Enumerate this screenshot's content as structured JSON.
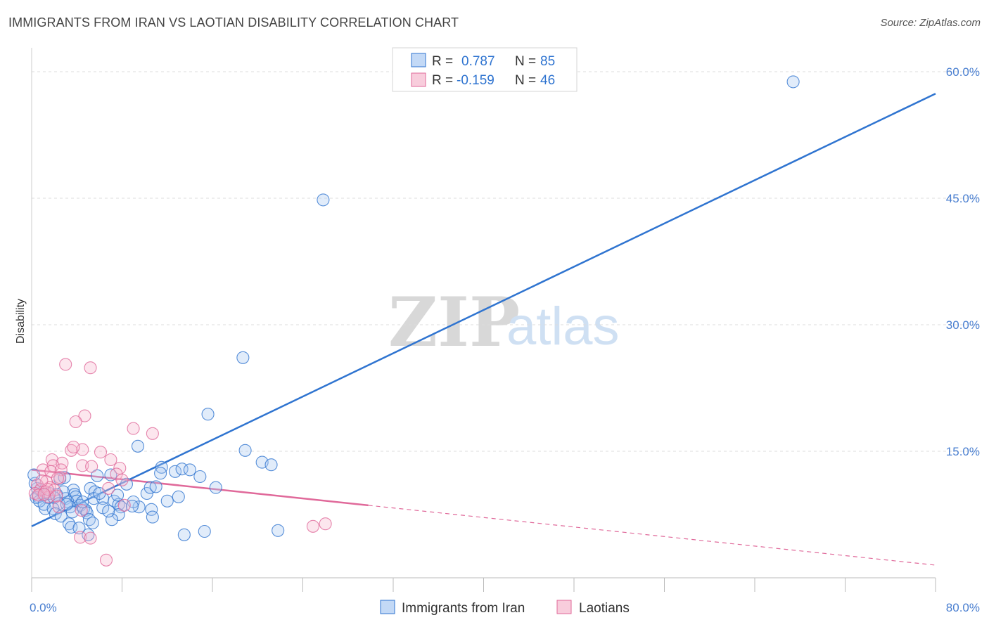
{
  "header": {
    "title": "IMMIGRANTS FROM IRAN VS LAOTIAN DISABILITY CORRELATION CHART",
    "source": "Source: ZipAtlas.com"
  },
  "watermark": {
    "zip": "ZIP",
    "atlas": "atlas"
  },
  "colors": {
    "blue": "#2f74d0",
    "blue_fill": "#a9c9f2",
    "pink": "#e0699a",
    "pink_fill": "#f5b8cd",
    "grid": "#dddddd",
    "axis_label": "#4a7fd0"
  },
  "chart_data": {
    "type": "scatter",
    "title": "IMMIGRANTS FROM IRAN VS LAOTIAN DISABILITY CORRELATION CHART",
    "xlabel": "",
    "ylabel": "Disability",
    "xlim": [
      0,
      80
    ],
    "ylim": [
      0,
      62
    ],
    "x_tick_labels": [
      {
        "value": 0,
        "label": "0.0%"
      },
      {
        "value": 80,
        "label": "80.0%"
      }
    ],
    "y_ticks": [
      {
        "value": 15,
        "label": "15.0%"
      },
      {
        "value": 30,
        "label": "30.0%"
      },
      {
        "value": 45,
        "label": "45.0%"
      },
      {
        "value": 60,
        "label": "60.0%"
      }
    ],
    "grid": true,
    "legend_placement": "top-center",
    "stats": [
      {
        "r_label": "R =",
        "r_value": "0.787",
        "n_label": "N =",
        "n_value": "85"
      },
      {
        "r_label": "R =",
        "r_value": "-0.159",
        "n_label": "N =",
        "n_value": "46"
      }
    ],
    "series": [
      {
        "name": "Immigrants from Iran",
        "color": "#2f74d0",
        "trend": {
          "x0": 0,
          "y0": 6.1,
          "x1": 80,
          "y1": 57.4,
          "dashed_from": null
        },
        "points": [
          [
            67.4,
            58.8
          ],
          [
            25.8,
            44.8
          ],
          [
            18.7,
            26.1
          ],
          [
            15.6,
            19.4
          ],
          [
            18.9,
            15.1
          ],
          [
            20.4,
            13.7
          ],
          [
            21.2,
            13.4
          ],
          [
            9.4,
            15.6
          ],
          [
            11.5,
            13.1
          ],
          [
            11.4,
            12.4
          ],
          [
            12.7,
            12.6
          ],
          [
            13.3,
            12.9
          ],
          [
            14.0,
            12.8
          ],
          [
            14.9,
            12.0
          ],
          [
            16.3,
            10.7
          ],
          [
            7.0,
            12.2
          ],
          [
            8.4,
            11.1
          ],
          [
            10.2,
            10.0
          ],
          [
            10.5,
            10.7
          ],
          [
            11.0,
            10.8
          ],
          [
            12.0,
            9.1
          ],
          [
            5.2,
            10.6
          ],
          [
            5.6,
            10.2
          ],
          [
            5.5,
            9.4
          ],
          [
            6.3,
            9.4
          ],
          [
            7.3,
            9.1
          ],
          [
            7.7,
            8.7
          ],
          [
            7.9,
            8.4
          ],
          [
            9.5,
            8.4
          ],
          [
            10.6,
            8.1
          ],
          [
            6.3,
            8.3
          ],
          [
            7.7,
            7.5
          ],
          [
            7.1,
            6.9
          ],
          [
            10.7,
            7.2
          ],
          [
            4.8,
            8.0
          ],
          [
            3.7,
            10.4
          ],
          [
            3.8,
            9.9
          ],
          [
            3.9,
            9.6
          ],
          [
            4.0,
            9.1
          ],
          [
            4.3,
            8.6
          ],
          [
            4.6,
            8.2
          ],
          [
            4.9,
            7.7
          ],
          [
            3.0,
            9.4
          ],
          [
            3.2,
            9.0
          ],
          [
            3.4,
            8.4
          ],
          [
            3.6,
            7.8
          ],
          [
            2.5,
            11.7
          ],
          [
            2.8,
            10.2
          ],
          [
            2.2,
            9.9
          ],
          [
            2.0,
            9.5
          ],
          [
            2.4,
            8.8
          ],
          [
            1.6,
            10.0
          ],
          [
            1.4,
            9.5
          ],
          [
            1.2,
            8.2
          ],
          [
            1.0,
            9.8
          ],
          [
            0.8,
            10.4
          ],
          [
            0.6,
            9.6
          ],
          [
            0.5,
            10.6
          ],
          [
            0.3,
            11.2
          ],
          [
            0.2,
            12.2
          ],
          [
            0.4,
            9.5
          ],
          [
            0.7,
            9.1
          ],
          [
            1.1,
            8.7
          ],
          [
            1.9,
            8.2
          ],
          [
            2.1,
            7.6
          ],
          [
            2.6,
            7.3
          ],
          [
            3.3,
            6.4
          ],
          [
            3.5,
            6.0
          ],
          [
            4.2,
            5.9
          ],
          [
            5.0,
            5.1
          ],
          [
            5.1,
            6.9
          ],
          [
            5.4,
            6.5
          ],
          [
            13.5,
            5.1
          ],
          [
            15.3,
            5.5
          ],
          [
            21.8,
            5.6
          ],
          [
            13.0,
            9.6
          ],
          [
            5.8,
            12.1
          ],
          [
            7.6,
            9.8
          ],
          [
            9.0,
            9.0
          ],
          [
            6.8,
            7.9
          ],
          [
            8.9,
            8.5
          ],
          [
            4.5,
            9.0
          ],
          [
            3.1,
            8.7
          ],
          [
            2.9,
            11.9
          ],
          [
            6.0,
            10.0
          ]
        ]
      },
      {
        "name": "Laotians",
        "color": "#e0699a",
        "trend": {
          "x0": 0,
          "y0": 12.8,
          "x1": 80,
          "y1": 1.5,
          "dashed_from": 29.8
        },
        "points": [
          [
            3.0,
            25.3
          ],
          [
            5.2,
            24.9
          ],
          [
            4.7,
            19.2
          ],
          [
            3.9,
            18.5
          ],
          [
            9.0,
            17.7
          ],
          [
            10.7,
            17.1
          ],
          [
            4.5,
            15.2
          ],
          [
            3.5,
            15.1
          ],
          [
            3.7,
            15.5
          ],
          [
            6.1,
            14.9
          ],
          [
            7.0,
            14.0
          ],
          [
            1.8,
            14.0
          ],
          [
            2.7,
            13.6
          ],
          [
            1.9,
            13.3
          ],
          [
            4.5,
            13.3
          ],
          [
            5.3,
            13.2
          ],
          [
            7.8,
            13.0
          ],
          [
            1.0,
            12.8
          ],
          [
            1.7,
            12.6
          ],
          [
            2.6,
            12.8
          ],
          [
            7.5,
            12.3
          ],
          [
            2.5,
            11.9
          ],
          [
            8.0,
            11.6
          ],
          [
            1.3,
            11.4
          ],
          [
            2.3,
            11.8
          ],
          [
            1.6,
            10.7
          ],
          [
            0.5,
            11.0
          ],
          [
            0.8,
            10.5
          ],
          [
            1.2,
            10.2
          ],
          [
            2.0,
            10.4
          ],
          [
            0.3,
            10.0
          ],
          [
            0.6,
            9.8
          ],
          [
            1.5,
            9.6
          ],
          [
            2.2,
            9.7
          ],
          [
            8.2,
            8.6
          ],
          [
            4.4,
            8.0
          ],
          [
            1.4,
            10.5
          ],
          [
            0.9,
            11.5
          ],
          [
            6.8,
            10.6
          ],
          [
            1.1,
            9.9
          ],
          [
            4.3,
            4.8
          ],
          [
            5.2,
            4.7
          ],
          [
            6.6,
            2.1
          ],
          [
            24.9,
            6.1
          ],
          [
            26.0,
            6.4
          ],
          [
            2.4,
            8.4
          ]
        ]
      }
    ]
  },
  "legend": {
    "items": [
      {
        "label": "Immigrants from Iran"
      },
      {
        "label": "Laotians"
      }
    ]
  }
}
